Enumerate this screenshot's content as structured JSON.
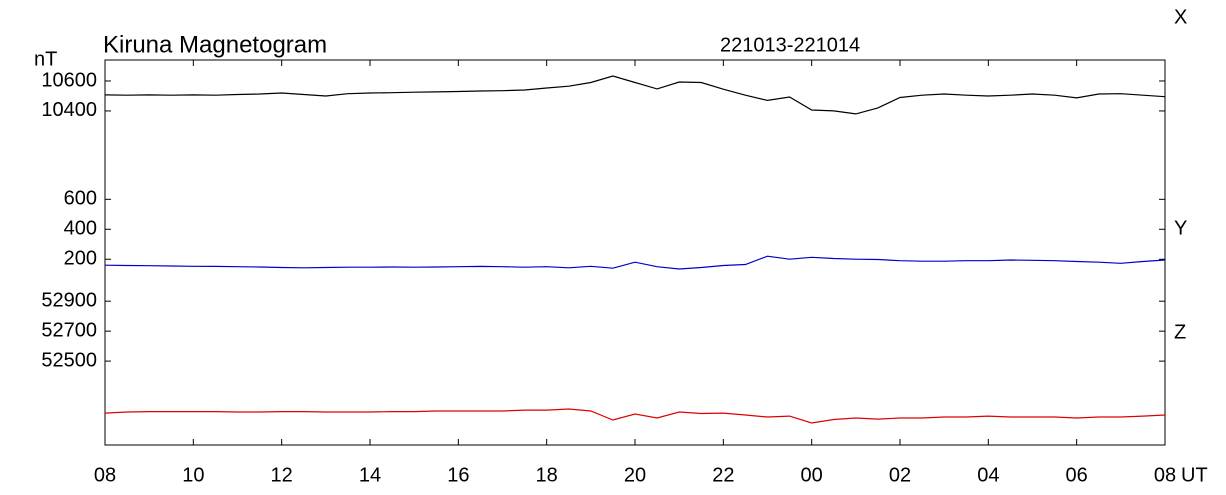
{
  "chart_data": {
    "type": "line",
    "title": "Kiruna Magnetogram",
    "subtitle": "221013-221014",
    "y_unit": "nT",
    "x_unit": "UT",
    "x": [
      8,
      8.5,
      9,
      9.5,
      10,
      10.5,
      11,
      11.5,
      12,
      12.5,
      13,
      13.5,
      14,
      14.5,
      15,
      15.5,
      16,
      16.5,
      17,
      17.5,
      18,
      18.5,
      19,
      19.5,
      20,
      20.5,
      21,
      21.5,
      22,
      22.5,
      23,
      23.5,
      24,
      24.5,
      25,
      25.5,
      26,
      26.5,
      27,
      27.5,
      28,
      28.5,
      29,
      29.5,
      30,
      30.5,
      31,
      31.5,
      32
    ],
    "xlim": [
      8,
      32
    ],
    "xticks": [
      {
        "value": 8,
        "label": "08"
      },
      10,
      12,
      14,
      16,
      18,
      20,
      22,
      {
        "value": 24,
        "label": "00"
      },
      {
        "value": 26,
        "label": "02"
      },
      {
        "value": 28,
        "label": "04"
      },
      {
        "value": 30,
        "label": "06"
      },
      {
        "value": 32,
        "label": "08"
      }
    ],
    "series": [
      {
        "name": "X",
        "color": "#000000",
        "ylim": [
          8170,
          10740
        ],
        "yticks": [
          10600,
          10400
        ],
        "values": [
          10507,
          10505,
          10507,
          10505,
          10507,
          10505,
          10510,
          10513,
          10520,
          10510,
          10500,
          10515,
          10520,
          10522,
          10525,
          10527,
          10530,
          10533,
          10535,
          10540,
          10553,
          10565,
          10590,
          10633,
          10590,
          10547,
          10593,
          10590,
          10545,
          10505,
          10470,
          10493,
          10406,
          10400,
          10380,
          10420,
          10490,
          10505,
          10513,
          10505,
          10500,
          10505,
          10513,
          10505,
          10487,
          10513,
          10515,
          10505,
          10495
        ]
      },
      {
        "name": "Y",
        "color": "#0000cc",
        "ylim": [
          -1040,
          1530
        ],
        "yticks": [
          600,
          400,
          200
        ],
        "values": [
          160,
          158,
          157,
          155,
          153,
          152,
          150,
          148,
          145,
          143,
          145,
          147,
          147,
          148,
          147,
          148,
          150,
          152,
          150,
          147,
          150,
          143,
          153,
          140,
          180,
          150,
          135,
          145,
          158,
          165,
          220,
          200,
          213,
          205,
          200,
          198,
          190,
          187,
          187,
          190,
          190,
          195,
          193,
          190,
          185,
          180,
          173,
          185,
          195
        ]
      },
      {
        "name": "Z",
        "color": "#e00000",
        "ylim": [
          51940,
          54510
        ],
        "yticks": [
          52900,
          52700,
          52500
        ],
        "values": [
          52153,
          52160,
          52163,
          52163,
          52163,
          52163,
          52160,
          52160,
          52163,
          52163,
          52160,
          52160,
          52160,
          52163,
          52163,
          52167,
          52167,
          52167,
          52167,
          52173,
          52173,
          52180,
          52167,
          52107,
          52147,
          52120,
          52160,
          52150,
          52153,
          52140,
          52127,
          52133,
          52087,
          52110,
          52120,
          52113,
          52120,
          52120,
          52127,
          52127,
          52133,
          52127,
          52127,
          52127,
          52120,
          52127,
          52127,
          52133,
          52140
        ]
      }
    ]
  }
}
